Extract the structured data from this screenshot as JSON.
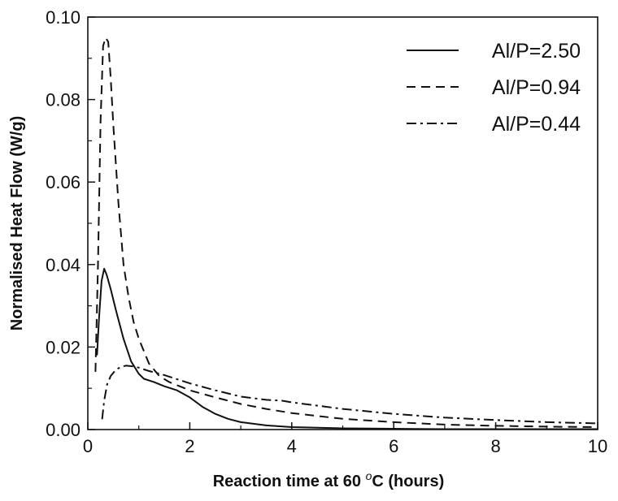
{
  "chart_data": {
    "type": "line",
    "xlabel": {
      "prefix": "Reaction time at 60 ",
      "sup": "o",
      "suffix": "C (hours)"
    },
    "ylabel": "Normalised Heat Flow (W/g)",
    "xlim": [
      0,
      10
    ],
    "ylim": [
      0,
      0.1
    ],
    "x_ticks": [
      "0",
      "2",
      "4",
      "6",
      "8",
      "10"
    ],
    "y_ticks": [
      "0.00",
      "0.02",
      "0.04",
      "0.06",
      "0.08",
      "0.10"
    ],
    "grid": false,
    "legend_position": "top-right",
    "series": [
      {
        "name": "Al/P=2.50",
        "line_style": "solid",
        "x": [
          0.18,
          0.22,
          0.27,
          0.32,
          0.37,
          0.45,
          0.55,
          0.7,
          0.85,
          1.0,
          1.1,
          1.3,
          1.5,
          1.75,
          2.0,
          2.25,
          2.5,
          2.75,
          3.0,
          3.5,
          4.0,
          5.0,
          6.0,
          7.0,
          8.0,
          9.0,
          10.0
        ],
        "y": [
          0.018,
          0.027,
          0.036,
          0.039,
          0.0375,
          0.034,
          0.029,
          0.022,
          0.0165,
          0.0135,
          0.0123,
          0.0115,
          0.0105,
          0.0095,
          0.0078,
          0.0055,
          0.0038,
          0.0026,
          0.0018,
          0.001,
          0.0006,
          0.0003,
          0.0002,
          0.0001,
          0.0001,
          0.0001,
          0.0001
        ]
      },
      {
        "name": "Al/P=0.94",
        "line_style": "dashed",
        "x": [
          0.15,
          0.2,
          0.25,
          0.3,
          0.35,
          0.4,
          0.45,
          0.5,
          0.6,
          0.7,
          0.8,
          0.9,
          1.0,
          1.2,
          1.4,
          1.6,
          1.8,
          2.0,
          2.5,
          3.0,
          3.5,
          4.0,
          5.0,
          6.0,
          7.0,
          8.0,
          9.0,
          10.0
        ],
        "y": [
          0.014,
          0.04,
          0.075,
          0.093,
          0.095,
          0.094,
          0.085,
          0.074,
          0.055,
          0.04,
          0.032,
          0.026,
          0.022,
          0.016,
          0.013,
          0.0115,
          0.0105,
          0.0095,
          0.0078,
          0.0062,
          0.005,
          0.004,
          0.0026,
          0.0018,
          0.0012,
          0.0009,
          0.0007,
          0.0006
        ]
      },
      {
        "name": "Al/P=0.44",
        "line_style": "dashdot",
        "x": [
          0.28,
          0.32,
          0.38,
          0.45,
          0.55,
          0.65,
          0.75,
          0.9,
          1.0,
          1.2,
          1.5,
          2.0,
          2.5,
          3.0,
          3.5,
          3.8,
          4.0,
          5.0,
          6.0,
          7.0,
          8.0,
          9.0,
          10.0
        ],
        "y": [
          0.0025,
          0.007,
          0.011,
          0.013,
          0.0145,
          0.0152,
          0.0155,
          0.0153,
          0.015,
          0.0142,
          0.0132,
          0.0112,
          0.0095,
          0.008,
          0.0072,
          0.007,
          0.0066,
          0.005,
          0.0038,
          0.0029,
          0.0023,
          0.0018,
          0.0015
        ]
      }
    ]
  }
}
